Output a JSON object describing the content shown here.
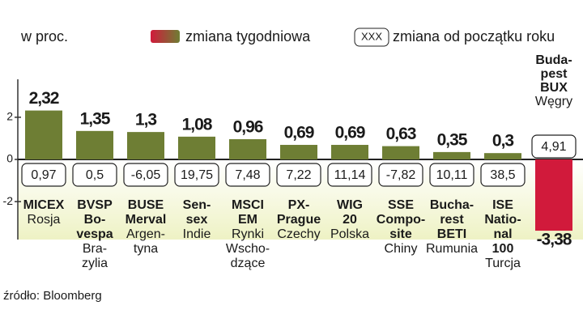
{
  "chart_data": {
    "type": "bar",
    "unit_label": "w proc.",
    "categories": [
      "MICEX",
      "BVSP\nBo-\nvespa",
      "BUSE\nMerval",
      "Sen-\nsex",
      "MSCI\nEM",
      "PX-\nPrague",
      "WIG\n20",
      "SSE\nCompo-\nsite",
      "Bucha-\nrest\nBETI",
      "ISE\nNatio-\nnal\n100",
      "Buda-\npest\nBUX"
    ],
    "countries": [
      "Rosja",
      "Bra-\nzylia",
      "Argen-\ntyna",
      "Indie",
      "Rynki\nWscho-\ndzące",
      "Czechy",
      "Polska",
      "Chiny",
      "Rumunia",
      "Turcja",
      "Węgry"
    ],
    "series": [
      {
        "name": "zmiana tygodniowa",
        "color": "#6e7e34",
        "negative_color": "#d11a3b",
        "values": [
          2.32,
          1.35,
          1.3,
          1.08,
          0.96,
          0.69,
          0.69,
          0.63,
          0.35,
          0.3,
          -3.38
        ],
        "value_labels": [
          "2,32",
          "1,35",
          "1,3",
          "1,08",
          "0,96",
          "0,69",
          "0,69",
          "0,63",
          "0,35",
          "0,3",
          "-3,38"
        ]
      },
      {
        "name": "zmiana od początku roku",
        "legend_sample": "XXX",
        "values": [
          0.97,
          0.5,
          -6.05,
          19.75,
          7.48,
          7.22,
          11.14,
          -7.82,
          10.11,
          38.5,
          4.91
        ],
        "value_labels": [
          "0,97",
          "0,5",
          "-6,05",
          "19,75",
          "7,48",
          "7,22",
          "11,14",
          "-7,82",
          "10,11",
          "38,5",
          "4,91"
        ]
      }
    ],
    "ylim": [
      -3.8,
      3.8
    ],
    "yticks": [
      2,
      0,
      -2
    ],
    "source": "źródło: Bloomberg"
  }
}
